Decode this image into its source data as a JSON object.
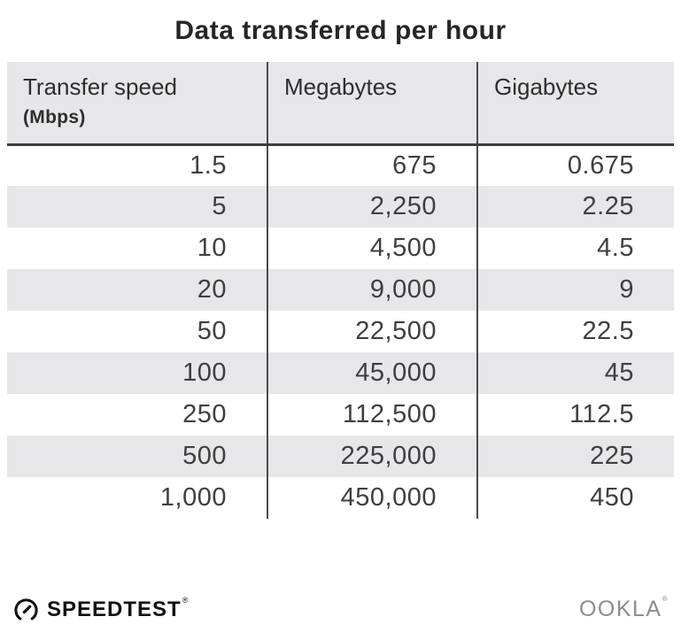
{
  "title": "Data transferred per hour",
  "table": {
    "columns": [
      {
        "label": "Transfer speed",
        "sublabel": "(Mbps)"
      },
      {
        "label": "Megabytes",
        "sublabel": ""
      },
      {
        "label": "Gigabytes",
        "sublabel": ""
      }
    ],
    "rows": [
      [
        "1.5",
        "675",
        "0.675"
      ],
      [
        "5",
        "2,250",
        "2.25"
      ],
      [
        "10",
        "4,500",
        "4.5"
      ],
      [
        "20",
        "9,000",
        "9"
      ],
      [
        "50",
        "22,500",
        "22.5"
      ],
      [
        "100",
        "45,000",
        "45"
      ],
      [
        "250",
        "112,500",
        "112.5"
      ],
      [
        "500",
        "225,000",
        "225"
      ],
      [
        "1,000",
        "450,000",
        "450"
      ]
    ]
  },
  "footer": {
    "speedtest_label": "SPEEDTEST",
    "speedtest_trademark": "®",
    "ookla_label": "OOKLA",
    "ookla_trademark": "®",
    "speedtest_icon": "gauge-icon"
  },
  "colors": {
    "stripe_bg": "#e7e7ea",
    "header_bg": "#e7e7ea",
    "column_divider": "#4a4a4a",
    "header_rule": "#3e3e3e",
    "title_text": "#262626",
    "header_text": "#2e2e2e",
    "data_text": "#3f3f3f",
    "ookla_gray": "#8c8c8c",
    "logo_ink": "#111111"
  },
  "chart_data": {
    "type": "table",
    "title": "Data transferred per hour",
    "columns": [
      "Transfer speed (Mbps)",
      "Megabytes",
      "Gigabytes"
    ],
    "rows": [
      [
        1.5,
        675,
        0.675
      ],
      [
        5,
        2250,
        2.25
      ],
      [
        10,
        4500,
        4.5
      ],
      [
        20,
        9000,
        9
      ],
      [
        50,
        22500,
        22.5
      ],
      [
        100,
        45000,
        45
      ],
      [
        250,
        112500,
        112.5
      ],
      [
        500,
        225000,
        225
      ],
      [
        1000,
        450000,
        450
      ]
    ],
    "layout": {
      "striped_rows": true,
      "stripe_start": "row 2",
      "column_dividers": true,
      "header_rule": true
    }
  }
}
